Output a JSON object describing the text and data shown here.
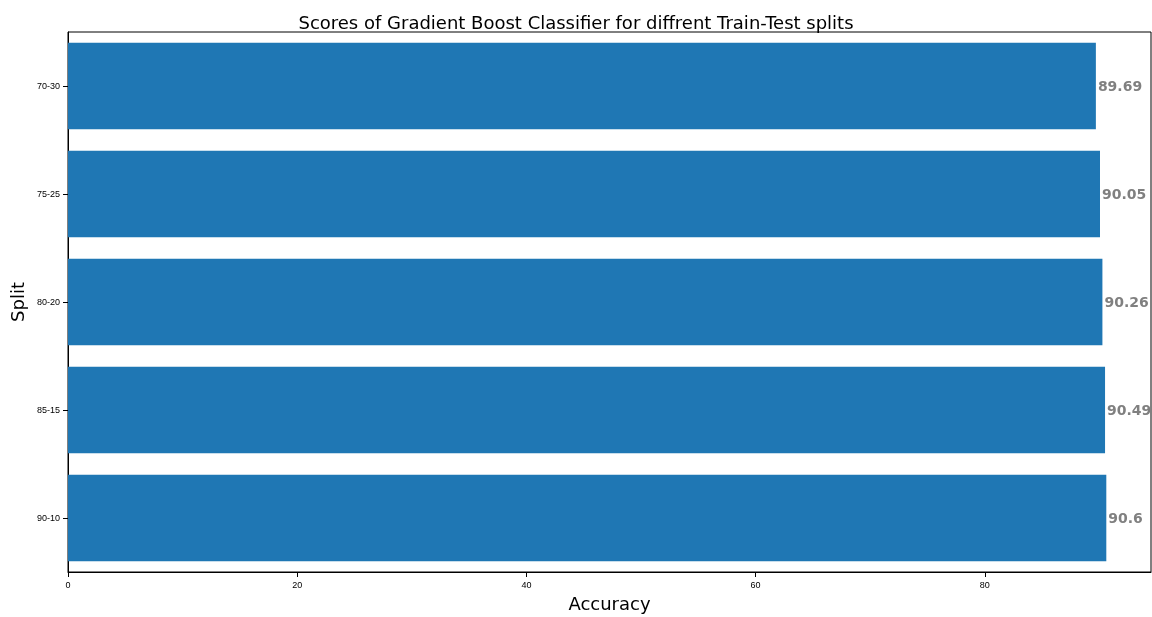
{
  "chart_data": {
    "type": "bar",
    "orientation": "horizontal",
    "title": "Scores of Gradient Boost Classifier for diffrent Train-Test splits",
    "xlabel": "Accuracy",
    "ylabel": "Split",
    "categories": [
      "70-30",
      "75-25",
      "80-20",
      "85-15",
      "90-10"
    ],
    "values": [
      89.69,
      90.05,
      90.26,
      90.49,
      90.6
    ],
    "color": "#1f77b4",
    "xlim": [
      0,
      94.5
    ],
    "xticks": [
      0,
      20,
      40,
      60,
      80
    ],
    "grid": false,
    "data_labels": true
  }
}
